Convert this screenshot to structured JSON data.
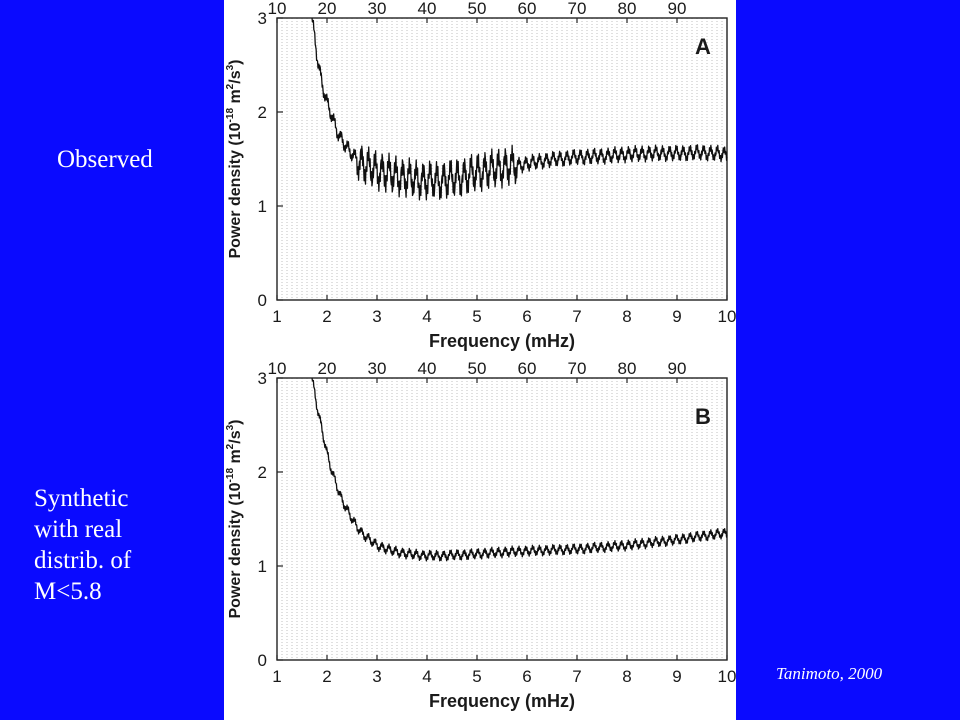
{
  "slide": {
    "observed_label": "Observed",
    "synthetic_label": "Synthetic\nwith real\ndistrib. of\nM<5.8",
    "citation": "Tanimoto, 2000",
    "background_color": "#0a0aff",
    "text_color": "#ffffff"
  },
  "chart_data": [
    {
      "type": "line",
      "panel_letter": "A",
      "xlabel": "Frequency (mHz)",
      "ylabel": "Power density (10",
      "ylabel_exp1": "-18",
      "ylabel_unit": " m",
      "ylabel_exp2": "2",
      "ylabel_unit2": "/s",
      "ylabel_exp3": "3",
      "ylabel_close": ")",
      "xlim": [
        1,
        10
      ],
      "ylim": [
        0,
        3
      ],
      "x_ticks": [
        1,
        2,
        3,
        4,
        5,
        6,
        7,
        8,
        9,
        10
      ],
      "y_ticks": [
        0,
        1,
        2,
        3
      ],
      "top_ticks": [
        10,
        20,
        30,
        40,
        50,
        60,
        70,
        80,
        90
      ],
      "grid": true,
      "series": [
        {
          "x": [
            1.7,
            1.8,
            1.9,
            2.0,
            2.1,
            2.2,
            2.3,
            2.4,
            2.5,
            2.6,
            2.7,
            2.8,
            2.9,
            3.0,
            3.2,
            3.4,
            3.6,
            3.8,
            4.0,
            4.2,
            4.4,
            4.6,
            4.8,
            5.0,
            5.2,
            5.4,
            5.6,
            5.8,
            6.0,
            6.3,
            6.6,
            7.0,
            7.5,
            8.0,
            8.5,
            9.0,
            9.5,
            10.0
          ],
          "y": [
            3.0,
            2.6,
            2.3,
            2.1,
            1.95,
            1.8,
            1.7,
            1.62,
            1.55,
            1.5,
            1.45,
            1.42,
            1.4,
            1.38,
            1.35,
            1.32,
            1.3,
            1.28,
            1.27,
            1.27,
            1.28,
            1.3,
            1.32,
            1.36,
            1.38,
            1.4,
            1.42,
            1.43,
            1.45,
            1.48,
            1.5,
            1.52,
            1.53,
            1.55,
            1.56,
            1.56,
            1.57,
            1.55
          ]
        }
      ]
    },
    {
      "type": "line",
      "panel_letter": "B",
      "xlabel": "Frequency (mHz)",
      "ylabel": "Power density (10",
      "ylabel_exp1": "-18",
      "ylabel_unit": " m",
      "ylabel_exp2": "2",
      "ylabel_unit2": "/s",
      "ylabel_exp3": "3",
      "ylabel_close": ")",
      "xlim": [
        1,
        10
      ],
      "ylim": [
        0,
        3
      ],
      "x_ticks": [
        1,
        2,
        3,
        4,
        5,
        6,
        7,
        8,
        9,
        10
      ],
      "y_ticks": [
        0,
        1,
        2,
        3
      ],
      "top_ticks": [
        10,
        20,
        30,
        40,
        50,
        60,
        70,
        80,
        90
      ],
      "grid": true,
      "series": [
        {
          "x": [
            1.7,
            1.8,
            1.9,
            2.0,
            2.1,
            2.2,
            2.3,
            2.4,
            2.5,
            2.6,
            2.7,
            2.8,
            2.9,
            3.0,
            3.2,
            3.4,
            3.6,
            3.8,
            4.0,
            4.2,
            4.4,
            4.6,
            4.8,
            5.0,
            5.3,
            5.6,
            6.0,
            6.5,
            7.0,
            7.5,
            8.0,
            8.5,
            9.0,
            9.5,
            10.0
          ],
          "y": [
            3.0,
            2.7,
            2.45,
            2.2,
            2.0,
            1.85,
            1.7,
            1.6,
            1.5,
            1.42,
            1.35,
            1.3,
            1.26,
            1.22,
            1.18,
            1.15,
            1.13,
            1.12,
            1.11,
            1.11,
            1.11,
            1.12,
            1.12,
            1.13,
            1.14,
            1.15,
            1.16,
            1.17,
            1.18,
            1.2,
            1.22,
            1.25,
            1.28,
            1.32,
            1.35
          ]
        }
      ]
    }
  ]
}
